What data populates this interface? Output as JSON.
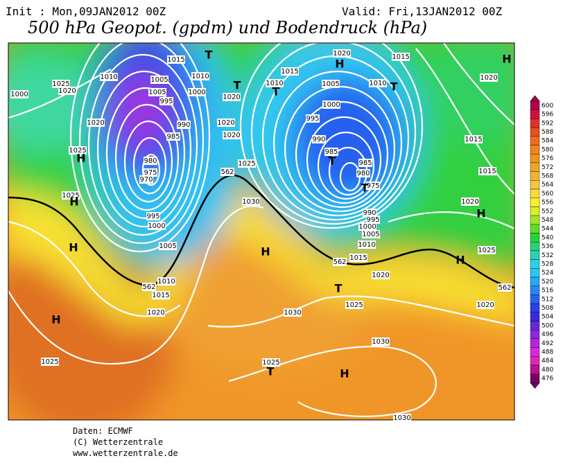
{
  "header": {
    "init": "Init : Mon,09JAN2012 00Z",
    "valid": "Valid: Fri,13JAN2012 00Z",
    "title": "500 hPa Geopot. (gpdm) und Bodendruck (hPa)"
  },
  "colorbar": {
    "values": [
      600,
      596,
      592,
      588,
      584,
      580,
      576,
      572,
      568,
      564,
      560,
      556,
      552,
      548,
      544,
      540,
      536,
      532,
      528,
      524,
      520,
      516,
      512,
      508,
      504,
      500,
      496,
      492,
      488,
      484,
      480,
      476
    ],
    "colors": [
      "#b4004a",
      "#d0103c",
      "#e03228",
      "#e85020",
      "#f06a1e",
      "#f0841e",
      "#f0961e",
      "#f0a628",
      "#f0b432",
      "#f4c83c",
      "#f8dc3c",
      "#f8f028",
      "#d8f028",
      "#a0e628",
      "#60dc28",
      "#28d23c",
      "#28d278",
      "#28d2b4",
      "#28d2e6",
      "#28c8f0",
      "#28a8f0",
      "#2888f0",
      "#2864f0",
      "#2840e6",
      "#3c28dc",
      "#6428dc",
      "#8c28dc",
      "#b428dc",
      "#dc28dc",
      "#dc28b4",
      "#b4148c",
      "#780064"
    ]
  },
  "map": {
    "labels": [
      "1025",
      "1000",
      "1020",
      "1020",
      "1025",
      "H",
      "1025",
      "H",
      "H",
      "H",
      "1025",
      "1010",
      "1005",
      "1005",
      "995",
      "1015",
      "1010",
      "1000",
      "990",
      "985",
      "980",
      "975",
      "970",
      "995",
      "1000",
      "1005",
      "1010",
      "1015",
      "1020",
      "T",
      "T",
      "1020",
      "1020",
      "1020",
      "562",
      "1025",
      "1030",
      "H",
      "1030",
      "1030",
      "1025",
      "T",
      "H",
      "1015",
      "T",
      "1010",
      "1005",
      "1000",
      "995",
      "990",
      "985",
      "T",
      "985",
      "980",
      "975",
      "T",
      "990",
      "995",
      "1000",
      "1005",
      "1010",
      "1015",
      "1020",
      "T",
      "1025",
      "1020",
      "H",
      "1015",
      "1010",
      "T",
      "1020",
      "H",
      "1015",
      "1015",
      "1020",
      "H",
      "1025",
      "H",
      "1020",
      "562",
      "562",
      "562",
      "1030"
    ]
  },
  "footer": {
    "source": "Daten: ECMWF",
    "copyright": "(C) Wetterzentrale",
    "url": "www.wetterzentrale.de"
  }
}
